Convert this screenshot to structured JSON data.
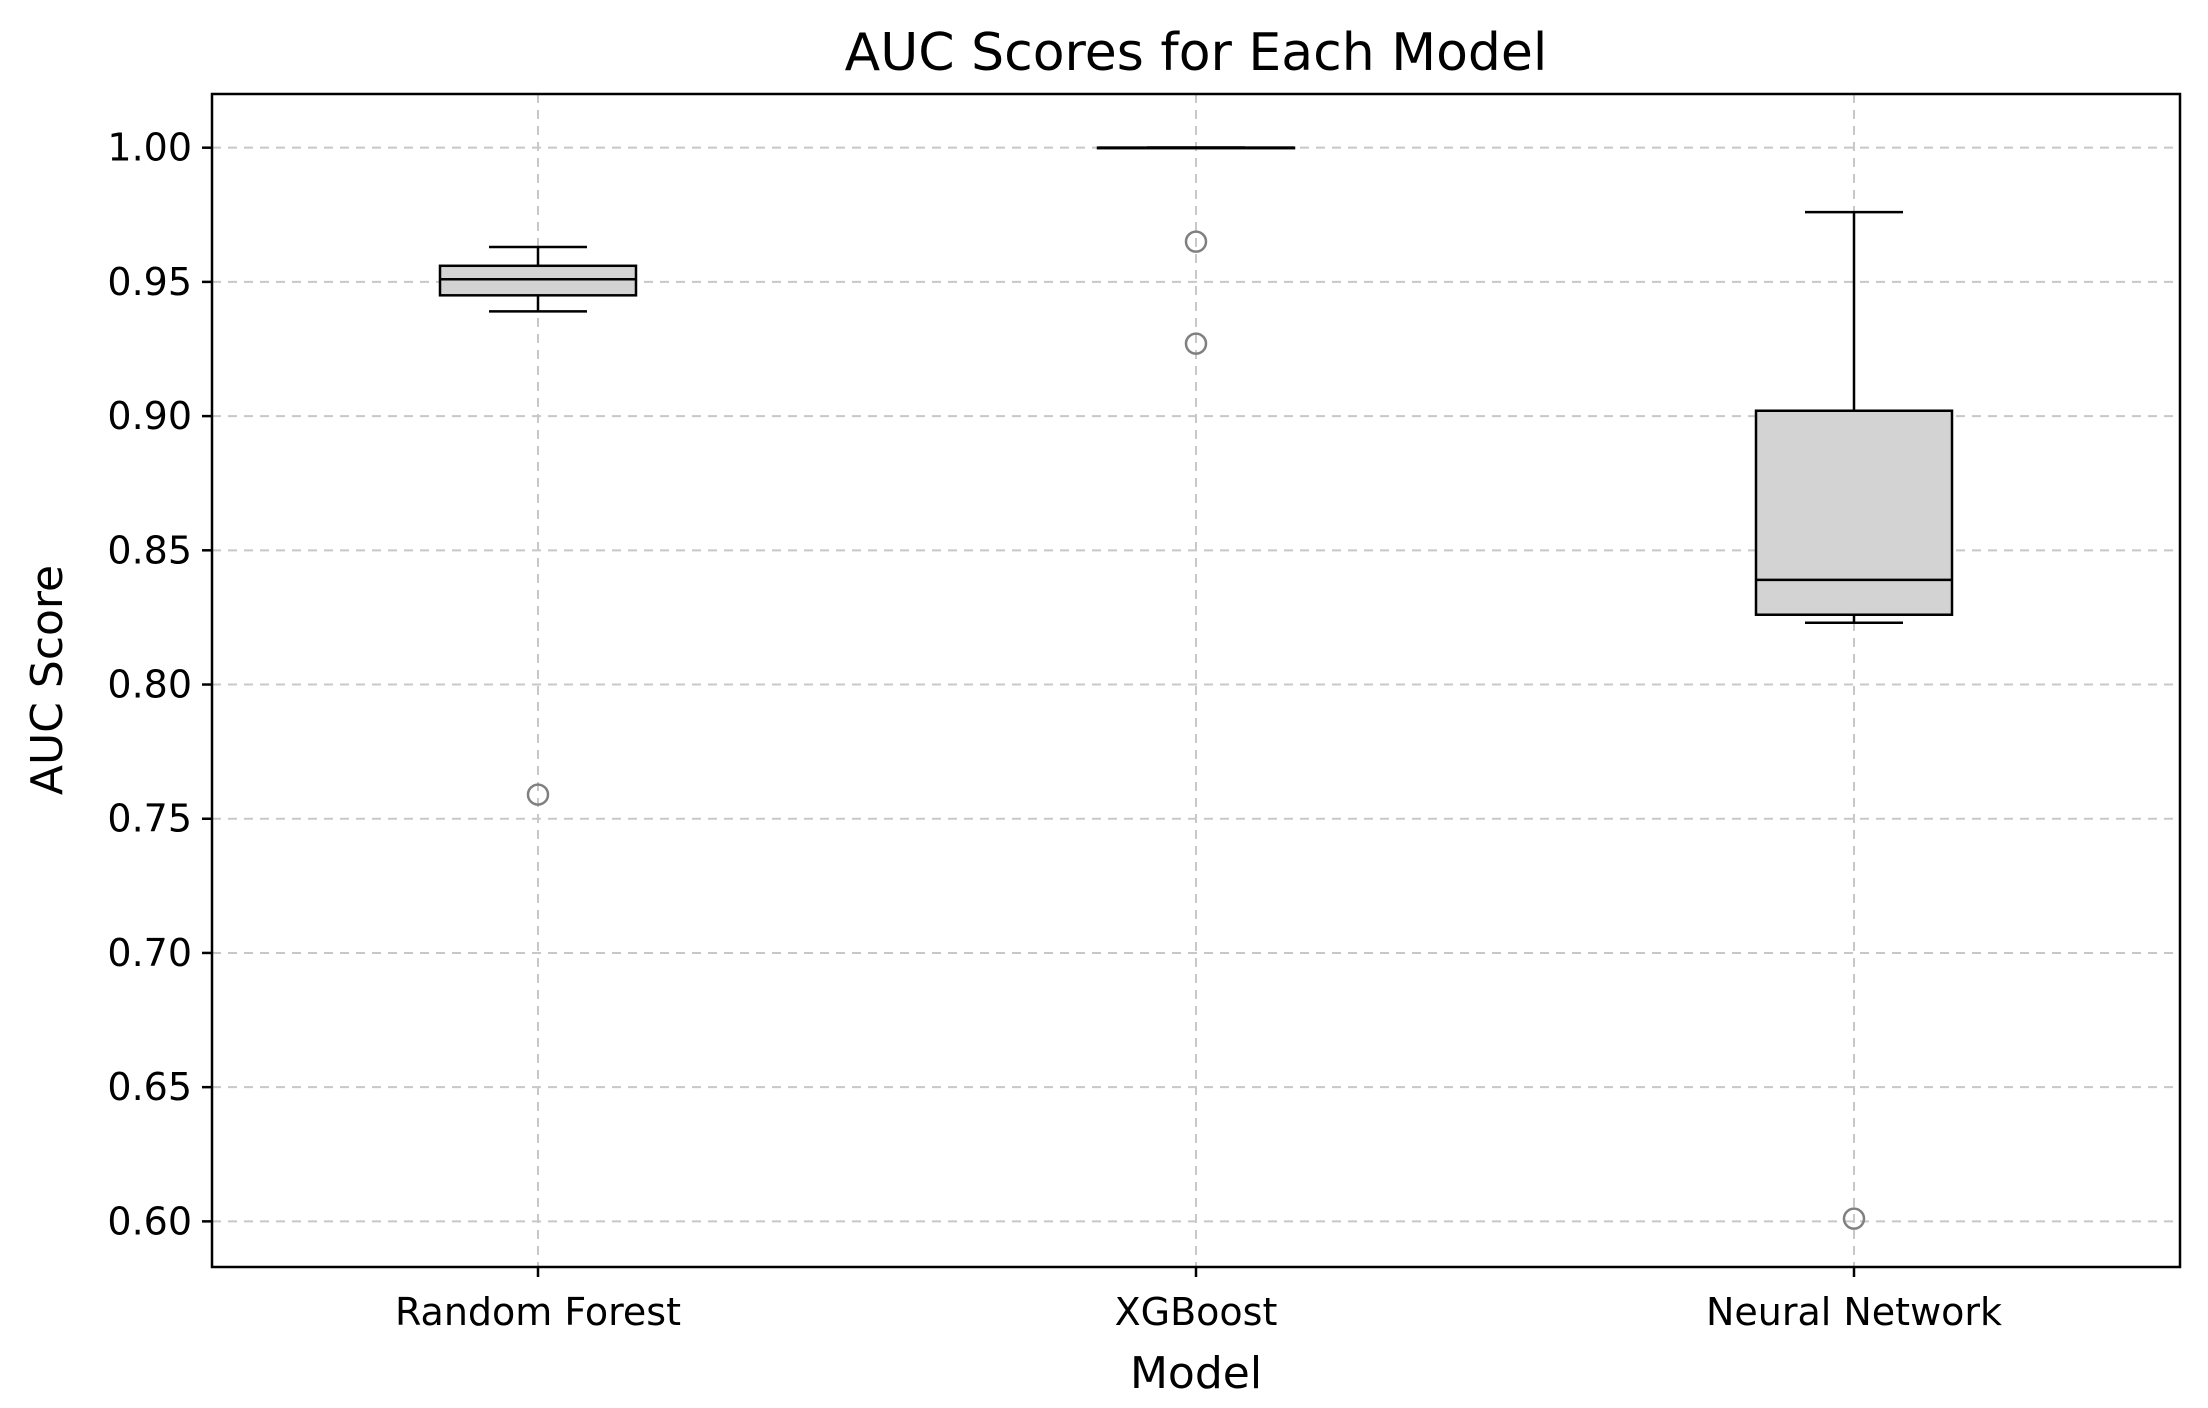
{
  "chart_data": {
    "type": "box",
    "title": "AUC Scores for Each Model",
    "xlabel": "Model",
    "ylabel": "AUC Score",
    "categories": [
      "Random Forest",
      "XGBoost",
      "Neural Network"
    ],
    "ylim": [
      0.583,
      1.02
    ],
    "yticks": [
      0.6,
      0.65,
      0.7,
      0.75,
      0.8,
      0.85,
      0.9,
      0.95,
      1.0
    ],
    "ytick_labels": [
      "0.60",
      "0.65",
      "0.70",
      "0.75",
      "0.80",
      "0.85",
      "0.90",
      "0.95",
      "1.00"
    ],
    "grid": true,
    "box_color": "#d3d3d3",
    "boxes": [
      {
        "category": "Random Forest",
        "whisker_low": 0.939,
        "q1": 0.945,
        "median": 0.951,
        "q3": 0.956,
        "whisker_high": 0.963,
        "outliers": [
          0.759
        ]
      },
      {
        "category": "XGBoost",
        "whisker_low": 1.0,
        "q1": 1.0,
        "median": 1.0,
        "q3": 1.0,
        "whisker_high": 1.0,
        "outliers": [
          0.965,
          0.927
        ]
      },
      {
        "category": "Neural Network",
        "whisker_low": 0.823,
        "q1": 0.826,
        "median": 0.839,
        "q3": 0.902,
        "whisker_high": 0.976,
        "outliers": [
          0.601
        ]
      }
    ]
  }
}
